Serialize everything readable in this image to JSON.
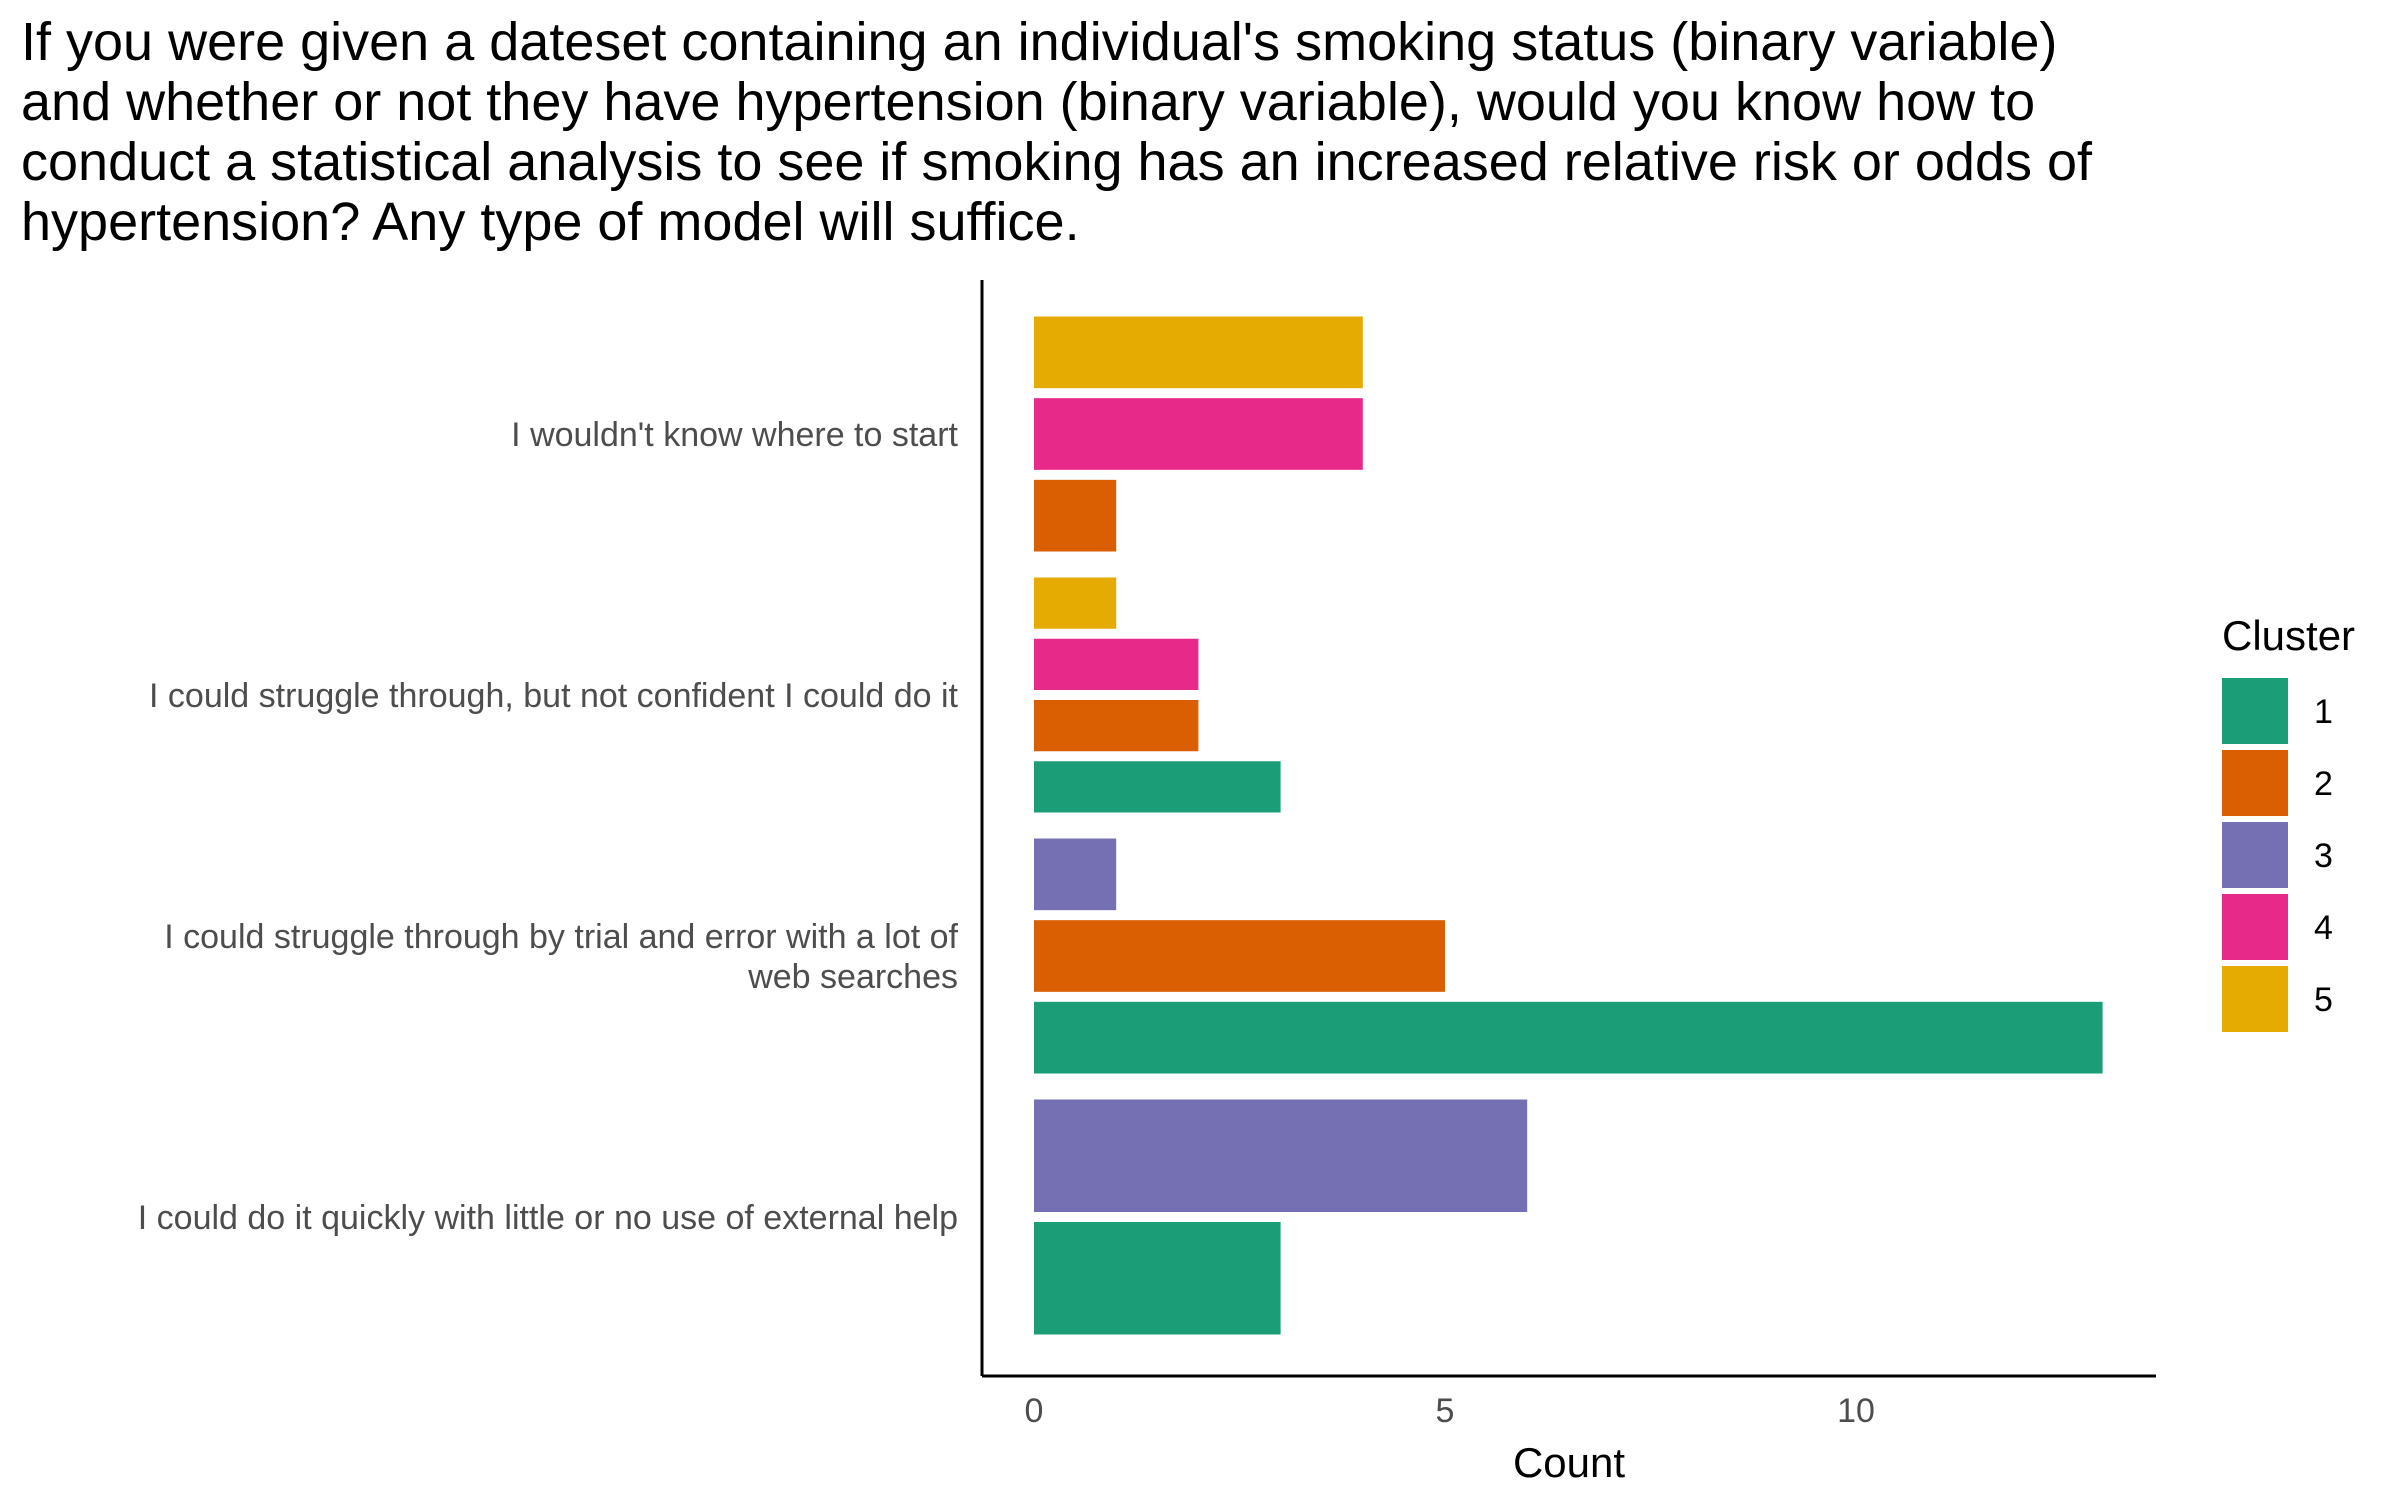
{
  "chart_data": {
    "type": "bar",
    "orientation": "horizontal",
    "title": "If you were given a dateset containing an individual's smoking status (binary variable) and whether or not they have hypertension (binary variable), would you know how to conduct a statistical analysis to see if smoking has an increased relative risk or odds of hypertension? Any type of model will suffice.",
    "xlabel": "Count",
    "ylabel": "",
    "xlim": [
      -0.65,
      13.6
    ],
    "xticks": [
      0,
      5,
      10
    ],
    "grid": false,
    "legend": {
      "title": "Cluster",
      "position": "right"
    },
    "categories": [
      "I wouldn't know where to start",
      "I could struggle through, but not confident I could do it",
      "I could struggle through by trial and error with a lot of web searches",
      "I could do it quickly with little or no use of external help"
    ],
    "series": [
      {
        "name": "1",
        "color": "#1b9e77",
        "values": [
          null,
          3,
          13,
          3
        ]
      },
      {
        "name": "2",
        "color": "#d95f02",
        "values": [
          1,
          2,
          5,
          null
        ]
      },
      {
        "name": "3",
        "color": "#7570b3",
        "values": [
          null,
          null,
          1,
          6
        ]
      },
      {
        "name": "4",
        "color": "#e7298a",
        "values": [
          4,
          2,
          null,
          null
        ]
      },
      {
        "name": "5",
        "color": "#e6ab02",
        "values": [
          4,
          1,
          null,
          null
        ]
      }
    ]
  }
}
